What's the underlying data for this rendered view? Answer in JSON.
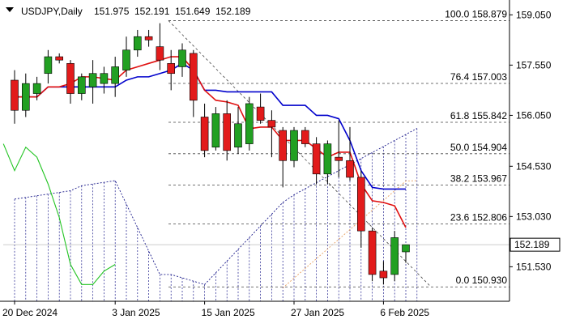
{
  "chart_data": {
    "type": "candlestick",
    "title": "USDJPY,Daily",
    "ohlc_header": [
      "151.975",
      "152.191",
      "151.649",
      "152.189"
    ],
    "ylim": [
      150.5,
      159.3
    ],
    "y_ticks": [
      {
        "value": 159.05,
        "label": "159.050"
      },
      {
        "value": 157.55,
        "label": "157.550"
      },
      {
        "value": 156.05,
        "label": "156.050"
      },
      {
        "value": 154.53,
        "label": "154.530"
      },
      {
        "value": 153.03,
        "label": "153.030"
      },
      {
        "value": 151.53,
        "label": "151.530"
      }
    ],
    "x_ticks": [
      {
        "bar": 0,
        "label": "20 Dec 2024"
      },
      {
        "bar": 9,
        "label": "3 Jan 2025"
      },
      {
        "bar": 17,
        "label": "15 Jan 2025"
      },
      {
        "bar": 25,
        "label": "27 Jan 2025"
      },
      {
        "bar": 33,
        "label": "6 Feb 2025"
      }
    ],
    "current_price": {
      "value": 152.189,
      "label": "152.189"
    },
    "fib_levels": [
      {
        "pct": "100.0",
        "price": 158.879,
        "label": "100.0 158.879"
      },
      {
        "pct": "76.4",
        "price": 157.003,
        "label": "76.4 157.003"
      },
      {
        "pct": "61.8",
        "price": 155.842,
        "label": "61.8 155.842"
      },
      {
        "pct": "50.0",
        "price": 154.904,
        "label": "50.0 154.904"
      },
      {
        "pct": "38.2",
        "price": 153.967,
        "label": "38.2 153.967"
      },
      {
        "pct": "23.6",
        "price": 152.806,
        "label": "23.6 152.806"
      },
      {
        "pct": "0.0",
        "price": 150.93,
        "label": "0.0 150.930"
      }
    ],
    "candles": [
      {
        "o": 157.1,
        "h": 157.4,
        "l": 155.8,
        "c": 156.2
      },
      {
        "o": 156.2,
        "h": 157.3,
        "l": 156.0,
        "c": 157.0
      },
      {
        "o": 156.7,
        "h": 157.2,
        "l": 156.5,
        "c": 157.0
      },
      {
        "o": 157.3,
        "h": 158.0,
        "l": 157.0,
        "c": 157.8
      },
      {
        "o": 157.8,
        "h": 157.9,
        "l": 157.6,
        "c": 157.7
      },
      {
        "o": 157.6,
        "h": 157.7,
        "l": 156.4,
        "c": 156.7
      },
      {
        "o": 156.7,
        "h": 157.3,
        "l": 156.5,
        "c": 157.2
      },
      {
        "o": 156.9,
        "h": 157.7,
        "l": 156.4,
        "c": 157.3
      },
      {
        "o": 157.0,
        "h": 157.5,
        "l": 156.7,
        "c": 157.3
      },
      {
        "o": 157.0,
        "h": 157.8,
        "l": 156.6,
        "c": 157.5
      },
      {
        "o": 157.4,
        "h": 158.4,
        "l": 157.2,
        "c": 158.0
      },
      {
        "o": 158.0,
        "h": 158.6,
        "l": 157.8,
        "c": 158.4
      },
      {
        "o": 158.4,
        "h": 158.6,
        "l": 158.1,
        "c": 158.3
      },
      {
        "o": 158.1,
        "h": 158.8,
        "l": 157.4,
        "c": 157.7
      },
      {
        "o": 157.6,
        "h": 158.0,
        "l": 156.8,
        "c": 157.3
      },
      {
        "o": 157.5,
        "h": 158.2,
        "l": 157.2,
        "c": 158.0
      },
      {
        "o": 157.9,
        "h": 158.0,
        "l": 156.0,
        "c": 156.5
      },
      {
        "o": 156.0,
        "h": 156.4,
        "l": 154.8,
        "c": 155.0
      },
      {
        "o": 155.1,
        "h": 156.3,
        "l": 155.0,
        "c": 156.1
      },
      {
        "o": 156.1,
        "h": 156.5,
        "l": 154.7,
        "c": 155.0
      },
      {
        "o": 155.1,
        "h": 156.3,
        "l": 154.9,
        "c": 155.8
      },
      {
        "o": 155.2,
        "h": 156.6,
        "l": 155.0,
        "c": 156.4
      },
      {
        "o": 156.3,
        "h": 156.7,
        "l": 155.8,
        "c": 155.9
      },
      {
        "o": 155.9,
        "h": 156.2,
        "l": 154.8,
        "c": 155.7
      },
      {
        "o": 155.6,
        "h": 155.7,
        "l": 153.9,
        "c": 154.7
      },
      {
        "o": 154.7,
        "h": 155.7,
        "l": 154.5,
        "c": 155.6
      },
      {
        "o": 155.6,
        "h": 155.7,
        "l": 155.1,
        "c": 155.2
      },
      {
        "o": 155.2,
        "h": 155.4,
        "l": 154.0,
        "c": 154.3
      },
      {
        "o": 154.3,
        "h": 155.3,
        "l": 154.0,
        "c": 155.2
      },
      {
        "o": 154.8,
        "h": 155.9,
        "l": 154.2,
        "c": 154.7
      },
      {
        "o": 154.7,
        "h": 155.7,
        "l": 154.1,
        "c": 154.2
      },
      {
        "o": 154.2,
        "h": 154.4,
        "l": 152.1,
        "c": 152.6
      },
      {
        "o": 152.6,
        "h": 152.7,
        "l": 151.1,
        "c": 151.3
      },
      {
        "o": 151.4,
        "h": 151.7,
        "l": 151.0,
        "c": 151.2
      },
      {
        "o": 151.3,
        "h": 152.6,
        "l": 151.1,
        "c": 152.4
      },
      {
        "o": 151.975,
        "h": 152.191,
        "l": 151.649,
        "c": 152.189
      }
    ],
    "colors": {
      "bull": "#22a022",
      "bear": "#e21b1b",
      "tenkan": "#e01010",
      "kijun": "#0000cc",
      "chikou": "#22c422",
      "span_a": "#e8a060",
      "span_b": "#1a1a8a",
      "fib": "#444444",
      "grid": "#222222"
    }
  }
}
